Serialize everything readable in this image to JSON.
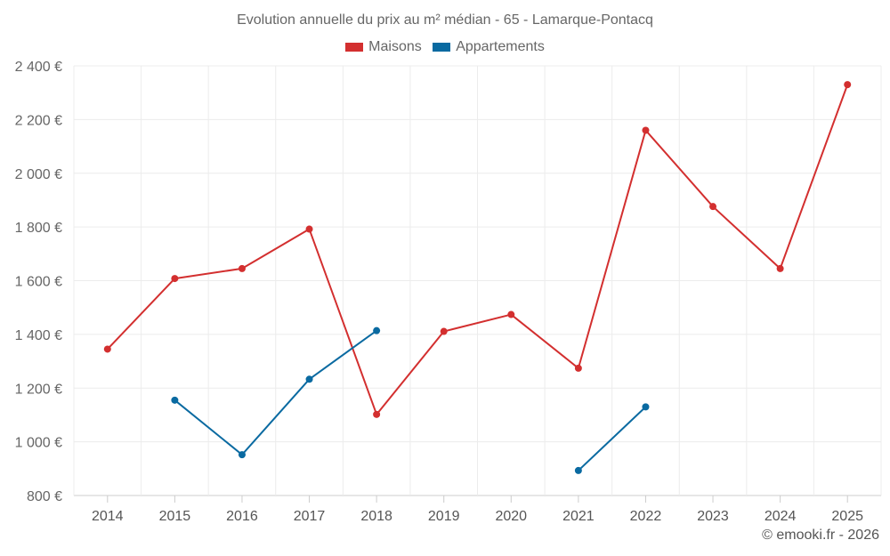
{
  "chart_data": {
    "type": "line",
    "title": "Evolution annuelle du prix au m² médian - 65 - Lamarque-Pontacq",
    "categories": [
      "2014",
      "2015",
      "2016",
      "2017",
      "2018",
      "2019",
      "2020",
      "2021",
      "2022",
      "2023",
      "2024",
      "2025"
    ],
    "ylim": [
      800,
      2400
    ],
    "yticks": [
      800,
      1000,
      1200,
      1400,
      1600,
      1800,
      2000,
      2200,
      2400
    ],
    "ytick_labels": [
      "800 €",
      "1 000 €",
      "1 200 €",
      "1 400 €",
      "1 600 €",
      "1 800 €",
      "2 000 €",
      "2 200 €",
      "2 400 €"
    ],
    "grid": true,
    "legend_position": "top-center",
    "series": [
      {
        "name": "Maisons",
        "color": "#d32f2f",
        "values": [
          1345,
          1608,
          1645,
          1792,
          1102,
          1411,
          1474,
          1274,
          2160,
          1876,
          1645,
          2330
        ]
      },
      {
        "name": "Appartements",
        "color": "#0a6aa1",
        "values": [
          null,
          1155,
          952,
          1233,
          1414,
          null,
          null,
          893,
          1130,
          null,
          null,
          null
        ]
      }
    ]
  },
  "credit": "© emooki.fr - 2026"
}
